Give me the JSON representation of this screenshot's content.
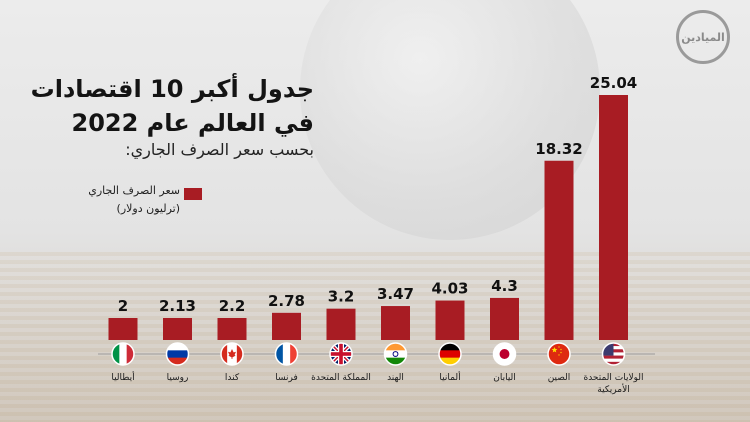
{
  "page": {
    "title_line1": "جدول أكبر 10 اقتصادات",
    "title_line2": "في العالم عام 2022",
    "subtitle": "بحسب سعر الصرف الجاري:",
    "logo_text": "الميادين"
  },
  "legend": {
    "label": "سعر الصرف الجاري",
    "unit": "(ترليون دولار)",
    "color": "#a81c23"
  },
  "chart_data": {
    "type": "bar",
    "title": "جدول أكبر 10 اقتصادات في العالم عام 2022",
    "subtitle": "بحسب سعر الصرف الجاري:",
    "ylabel": "(ترليون دولار)",
    "categories": [
      [
        "أيطاليا"
      ],
      [
        "روسيا"
      ],
      [
        "كندا"
      ],
      [
        "فرنسا"
      ],
      [
        "المملكة المتحدة"
      ],
      [
        "الهند"
      ],
      [
        "ألمانيا"
      ],
      [
        "اليابان"
      ],
      [
        "الصين"
      ],
      [
        "الولايات المتحدة",
        "الأمريكية"
      ]
    ],
    "value_labels": [
      "2",
      "2.13",
      "2.2",
      "2.78",
      "3.2",
      "3.47",
      "4.03",
      "4.3",
      "18.32",
      "25.04"
    ],
    "series": [
      {
        "name": "سعر الصرف الجاري",
        "values": [
          2,
          2.13,
          2.2,
          2.78,
          3.2,
          3.47,
          4.03,
          4.3,
          18.32,
          25.04
        ]
      }
    ],
    "flags": [
      "italy-flag-icon",
      "russia-flag-icon",
      "canada-flag-icon",
      "france-flag-icon",
      "uk-flag-icon",
      "india-flag-icon",
      "germany-flag-icon",
      "japan-flag-icon",
      "china-flag-icon",
      "usa-flag-icon"
    ],
    "ylim": [
      0,
      25.04
    ],
    "bar_color": "#a81c23",
    "grid": false,
    "legend_position": "left"
  }
}
